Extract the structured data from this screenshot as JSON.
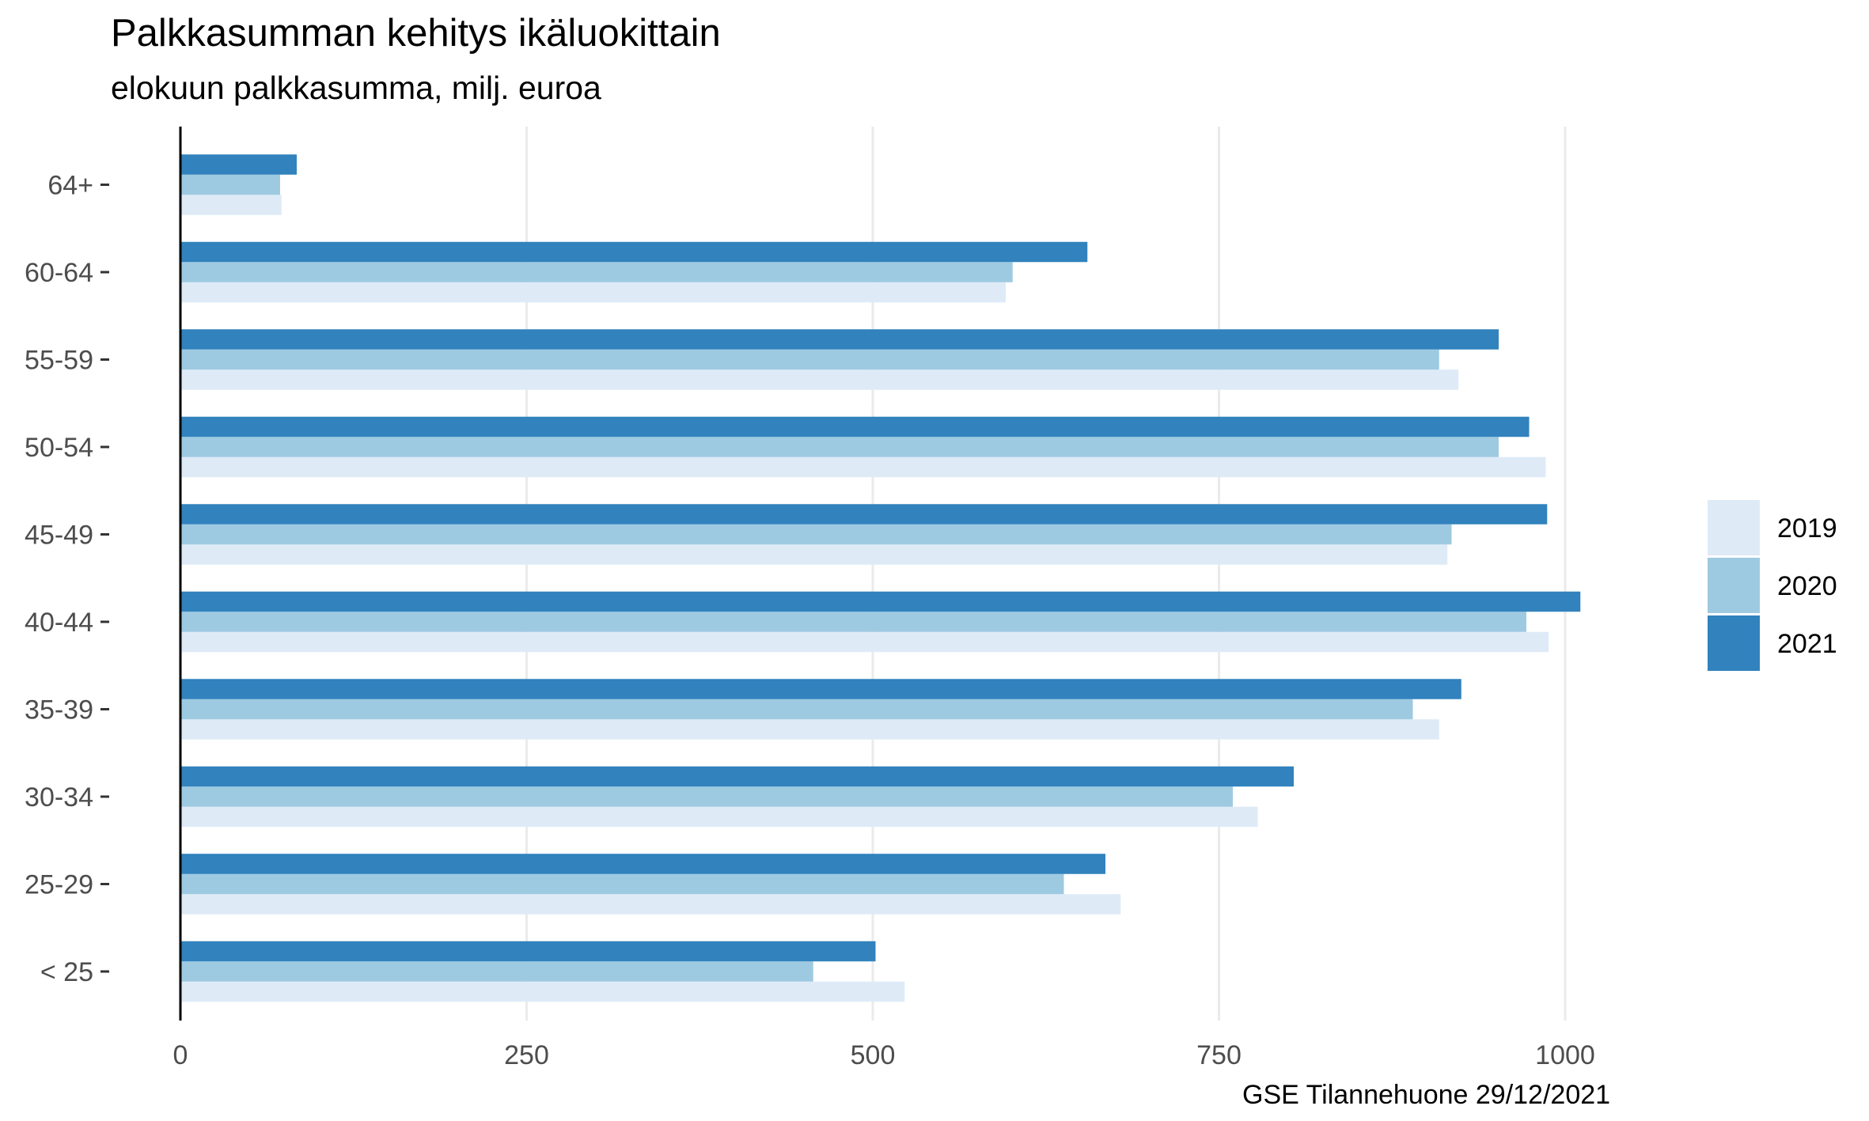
{
  "title": "Palkkasumman kehitys ikäluokittain",
  "subtitle": "elokuun palkkasumma, milj. euroa",
  "caption": "GSE Tilannehuone 29/12/2021",
  "colors": {
    "2019": "#deebf7",
    "2020": "#9ecae1",
    "2021": "#3182bd"
  },
  "chart_data": {
    "type": "bar",
    "orientation": "horizontal",
    "title": "Palkkasumman kehitys ikäluokittain",
    "subtitle": "elokuun palkkasumma, milj. euroa",
    "xlabel": "",
    "ylabel": "",
    "categories": [
      "< 25",
      "25-29",
      "30-34",
      "35-39",
      "40-44",
      "45-49",
      "50-54",
      "55-59",
      "60-64",
      "64+"
    ],
    "series": [
      {
        "name": "2019",
        "values": [
          523,
          679,
          778,
          909,
          988,
          915,
          986,
          923,
          596,
          73
        ]
      },
      {
        "name": "2020",
        "values": [
          457,
          638,
          760,
          890,
          972,
          918,
          952,
          909,
          601,
          72
        ]
      },
      {
        "name": "2021",
        "values": [
          502,
          668,
          804,
          925,
          1011,
          987,
          974,
          952,
          655,
          84
        ]
      }
    ],
    "xlim": [
      0,
      1100
    ],
    "xticks": [
      0,
      250,
      500,
      750,
      1000
    ],
    "grid": true,
    "legend_position": "right"
  }
}
